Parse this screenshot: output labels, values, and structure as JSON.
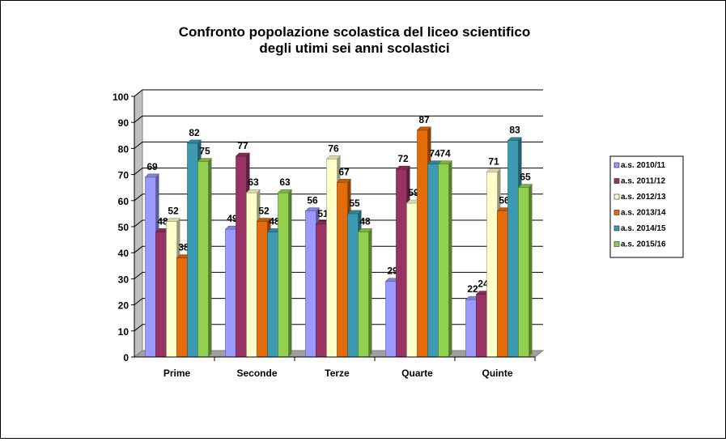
{
  "chart_data": {
    "type": "bar",
    "title": [
      "Confronto popolazione scolastica  del liceo scientifico",
      "degli utimi sei anni  scolastici"
    ],
    "xlabel": "",
    "ylabel": "",
    "categories": [
      "Prime",
      "Seconde",
      "Terze",
      "Quarte",
      "Quinte"
    ],
    "ylim": [
      0,
      100
    ],
    "yticks": [
      0,
      10,
      20,
      30,
      40,
      50,
      60,
      70,
      80,
      90,
      100
    ],
    "grid": true,
    "style": "3d-clustered",
    "legend_position": "right",
    "series": [
      {
        "name": "a.s. 2010/11",
        "color": "#9999ff",
        "values": [
          69,
          49,
          56,
          29,
          22
        ]
      },
      {
        "name": "a.s. 2011/12",
        "color": "#993366",
        "values": [
          48,
          77,
          51,
          72,
          24
        ]
      },
      {
        "name": "a.s. 2012/13",
        "color": "#ffffcc",
        "values": [
          52,
          63,
          76,
          59,
          71
        ]
      },
      {
        "name": "a.s. 2013/14",
        "color": "#e46c0a",
        "values": [
          38,
          52,
          67,
          87,
          56
        ]
      },
      {
        "name": "a.s. 2014/15",
        "color": "#3c9bb2",
        "values": [
          82,
          48,
          55,
          74,
          83
        ]
      },
      {
        "name": "a.s. 2015/16",
        "color": "#92d050",
        "values": [
          75,
          63,
          48,
          74,
          65
        ]
      }
    ]
  }
}
